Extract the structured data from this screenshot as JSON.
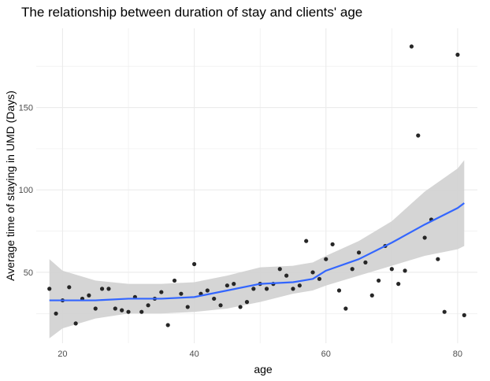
{
  "chart_data": {
    "type": "scatter",
    "title": "The relationship between duration of stay and clients' age",
    "xlabel": "age",
    "ylabel": "Average time of staying in UMD (Days)",
    "xlim": [
      16,
      83
    ],
    "ylim": [
      7,
      198
    ],
    "x_ticks": [
      20,
      40,
      60,
      80
    ],
    "y_ticks": [
      50,
      100,
      150
    ],
    "x_tick_labels": [
      "20",
      "40",
      "60",
      "80"
    ],
    "y_tick_labels": [
      "50",
      "100",
      "150"
    ],
    "grid": true,
    "colors": {
      "points": "#262626",
      "smooth_line": "#3366ff",
      "confidence_band": "#d3d3d3",
      "grid": "#ebebeb"
    },
    "points": [
      {
        "x": 18,
        "y": 40
      },
      {
        "x": 19,
        "y": 25
      },
      {
        "x": 20,
        "y": 33
      },
      {
        "x": 21,
        "y": 41
      },
      {
        "x": 22,
        "y": 19
      },
      {
        "x": 23,
        "y": 34
      },
      {
        "x": 24,
        "y": 36
      },
      {
        "x": 25,
        "y": 28
      },
      {
        "x": 26,
        "y": 40
      },
      {
        "x": 27,
        "y": 40
      },
      {
        "x": 28,
        "y": 28
      },
      {
        "x": 29,
        "y": 27
      },
      {
        "x": 30,
        "y": 26
      },
      {
        "x": 31,
        "y": 35
      },
      {
        "x": 32,
        "y": 26
      },
      {
        "x": 33,
        "y": 30
      },
      {
        "x": 34,
        "y": 34
      },
      {
        "x": 35,
        "y": 38
      },
      {
        "x": 36,
        "y": 18
      },
      {
        "x": 37,
        "y": 45
      },
      {
        "x": 38,
        "y": 37
      },
      {
        "x": 39,
        "y": 29
      },
      {
        "x": 40,
        "y": 55
      },
      {
        "x": 41,
        "y": 37
      },
      {
        "x": 42,
        "y": 39
      },
      {
        "x": 43,
        "y": 34
      },
      {
        "x": 44,
        "y": 30
      },
      {
        "x": 45,
        "y": 42
      },
      {
        "x": 46,
        "y": 43
      },
      {
        "x": 47,
        "y": 29
      },
      {
        "x": 48,
        "y": 32
      },
      {
        "x": 49,
        "y": 40
      },
      {
        "x": 50,
        "y": 43
      },
      {
        "x": 51,
        "y": 40
      },
      {
        "x": 52,
        "y": 43
      },
      {
        "x": 53,
        "y": 52
      },
      {
        "x": 54,
        "y": 48
      },
      {
        "x": 55,
        "y": 40
      },
      {
        "x": 56,
        "y": 42
      },
      {
        "x": 57,
        "y": 69
      },
      {
        "x": 58,
        "y": 50
      },
      {
        "x": 59,
        "y": 46
      },
      {
        "x": 60,
        "y": 58
      },
      {
        "x": 61,
        "y": 67
      },
      {
        "x": 62,
        "y": 39
      },
      {
        "x": 63,
        "y": 28
      },
      {
        "x": 64,
        "y": 52
      },
      {
        "x": 65,
        "y": 62
      },
      {
        "x": 66,
        "y": 56
      },
      {
        "x": 67,
        "y": 36
      },
      {
        "x": 68,
        "y": 45
      },
      {
        "x": 69,
        "y": 66
      },
      {
        "x": 70,
        "y": 52
      },
      {
        "x": 71,
        "y": 43
      },
      {
        "x": 72,
        "y": 51
      },
      {
        "x": 73,
        "y": 187
      },
      {
        "x": 74,
        "y": 133
      },
      {
        "x": 75,
        "y": 71
      },
      {
        "x": 76,
        "y": 82
      },
      {
        "x": 77,
        "y": 58
      },
      {
        "x": 78,
        "y": 26
      },
      {
        "x": 80,
        "y": 182
      },
      {
        "x": 81,
        "y": 24
      }
    ],
    "smooth": {
      "x": [
        18,
        20,
        25,
        30,
        35,
        40,
        45,
        50,
        55,
        58,
        60,
        65,
        70,
        75,
        80,
        81
      ],
      "y": [
        33,
        33,
        33,
        34,
        34,
        35,
        39,
        43,
        44,
        46,
        51,
        58,
        68,
        79,
        89,
        92
      ],
      "lower": [
        10,
        16,
        22,
        25,
        25,
        26,
        28,
        32,
        37,
        39,
        42,
        48,
        54,
        60,
        64,
        66
      ],
      "upper": [
        58,
        51,
        45,
        43,
        43,
        44,
        48,
        53,
        54,
        56,
        60,
        69,
        81,
        99,
        113,
        118
      ]
    }
  }
}
